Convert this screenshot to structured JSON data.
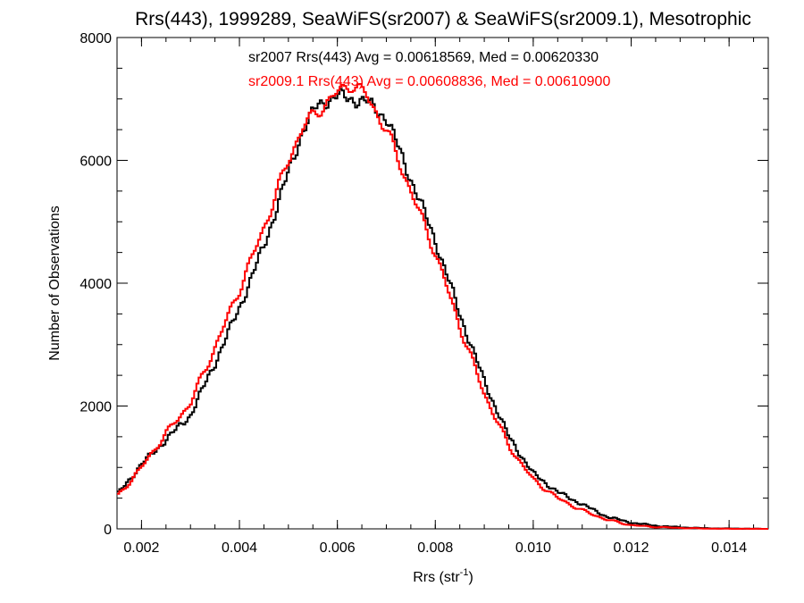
{
  "chart_data": {
    "type": "line",
    "title": "Rrs(443), 1999289, SeaWiFS(sr2007) & SeaWiFS(sr2009.1), Mesotrophic",
    "xlabel": {
      "base": "Rrs (str",
      "sup": "-1",
      "end": ")"
    },
    "ylabel": "Number of Observations",
    "xlim": [
      0.0015,
      0.0148
    ],
    "ylim": [
      0,
      8000
    ],
    "x_ticks": [
      "0.002",
      "0.004",
      "0.006",
      "0.008",
      "0.010",
      "0.012",
      "0.014"
    ],
    "x_tick_values": [
      0.002,
      0.004,
      0.006,
      0.008,
      0.01,
      0.012,
      0.014
    ],
    "y_ticks": [
      "0",
      "2000",
      "4000",
      "6000",
      "8000"
    ],
    "y_tick_values": [
      0,
      2000,
      4000,
      6000,
      8000
    ],
    "grid": false,
    "annotations": [
      {
        "text": "sr2007 Rrs(443) Avg = 0.00618569, Med = 0.00620330",
        "color": "#000000"
      },
      {
        "text": "sr2009.1 Rrs(443) Avg = 0.00608836, Med = 0.00610900",
        "color": "#ff0000"
      }
    ],
    "series": [
      {
        "color": "#000000",
        "x": [
          0.0015,
          0.002,
          0.0025,
          0.003,
          0.0035,
          0.004,
          0.0045,
          0.005,
          0.0053,
          0.0056,
          0.006,
          0.0063,
          0.0066,
          0.007,
          0.0075,
          0.008,
          0.0085,
          0.009,
          0.0095,
          0.01,
          0.0105,
          0.011,
          0.0115,
          0.012,
          0.0125,
          0.013,
          0.0135,
          0.014,
          0.0148
        ],
        "y": [
          550,
          1050,
          1450,
          1850,
          2700,
          3600,
          4600,
          5800,
          6500,
          6900,
          7050,
          7000,
          6950,
          6700,
          5700,
          4700,
          3500,
          2400,
          1500,
          900,
          600,
          400,
          200,
          100,
          50,
          25,
          10,
          5,
          0
        ]
      },
      {
        "color": "#ff0000",
        "x": [
          0.0015,
          0.002,
          0.0025,
          0.003,
          0.0035,
          0.004,
          0.0045,
          0.005,
          0.0053,
          0.0056,
          0.006,
          0.0063,
          0.0066,
          0.007,
          0.0075,
          0.008,
          0.0085,
          0.009,
          0.0095,
          0.01,
          0.0105,
          0.011,
          0.0115,
          0.012,
          0.0125,
          0.013,
          0.0135,
          0.014,
          0.0148
        ],
        "y": [
          520,
          1000,
          1550,
          2050,
          2950,
          3900,
          4900,
          6000,
          6550,
          6800,
          7100,
          7250,
          7050,
          6500,
          5500,
          4500,
          3300,
          2200,
          1350,
          800,
          500,
          300,
          150,
          60,
          30,
          15,
          5,
          2,
          0
        ]
      }
    ]
  }
}
